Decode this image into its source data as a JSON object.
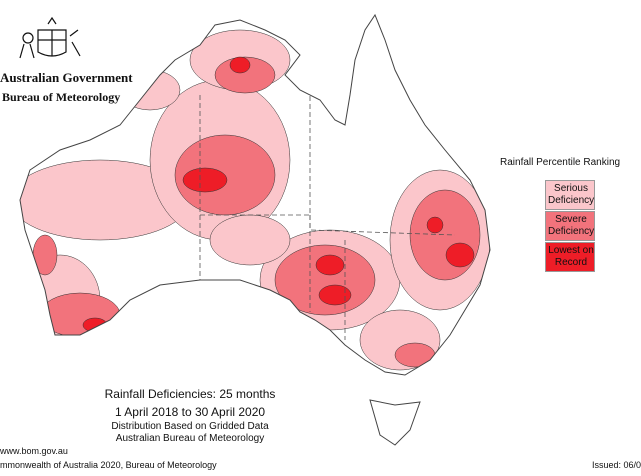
{
  "header": {
    "government": "Australian Government",
    "agency": "Bureau of Meteorology"
  },
  "legend": {
    "title": "Rainfall Percentile Ranking",
    "items": [
      {
        "label": "Serious Deficiency",
        "color": "#fbc6cb"
      },
      {
        "label": "Severe Deficiency",
        "color": "#f2737c"
      },
      {
        "label": "Lowest on Record",
        "color": "#ee1d27"
      }
    ]
  },
  "caption": {
    "title": "Rainfall Deficiencies: 25 months",
    "period": "1 April 2018 to 30 April 2020",
    "note": "Distribution Based on Gridded Data",
    "source": "Australian Bureau of Meteorology"
  },
  "footer": {
    "url": "www.bom.gov.au",
    "copyright": "mmonwealth of Australia 2020, Bureau of Meteorology",
    "issued": "Issued: 06/0"
  }
}
